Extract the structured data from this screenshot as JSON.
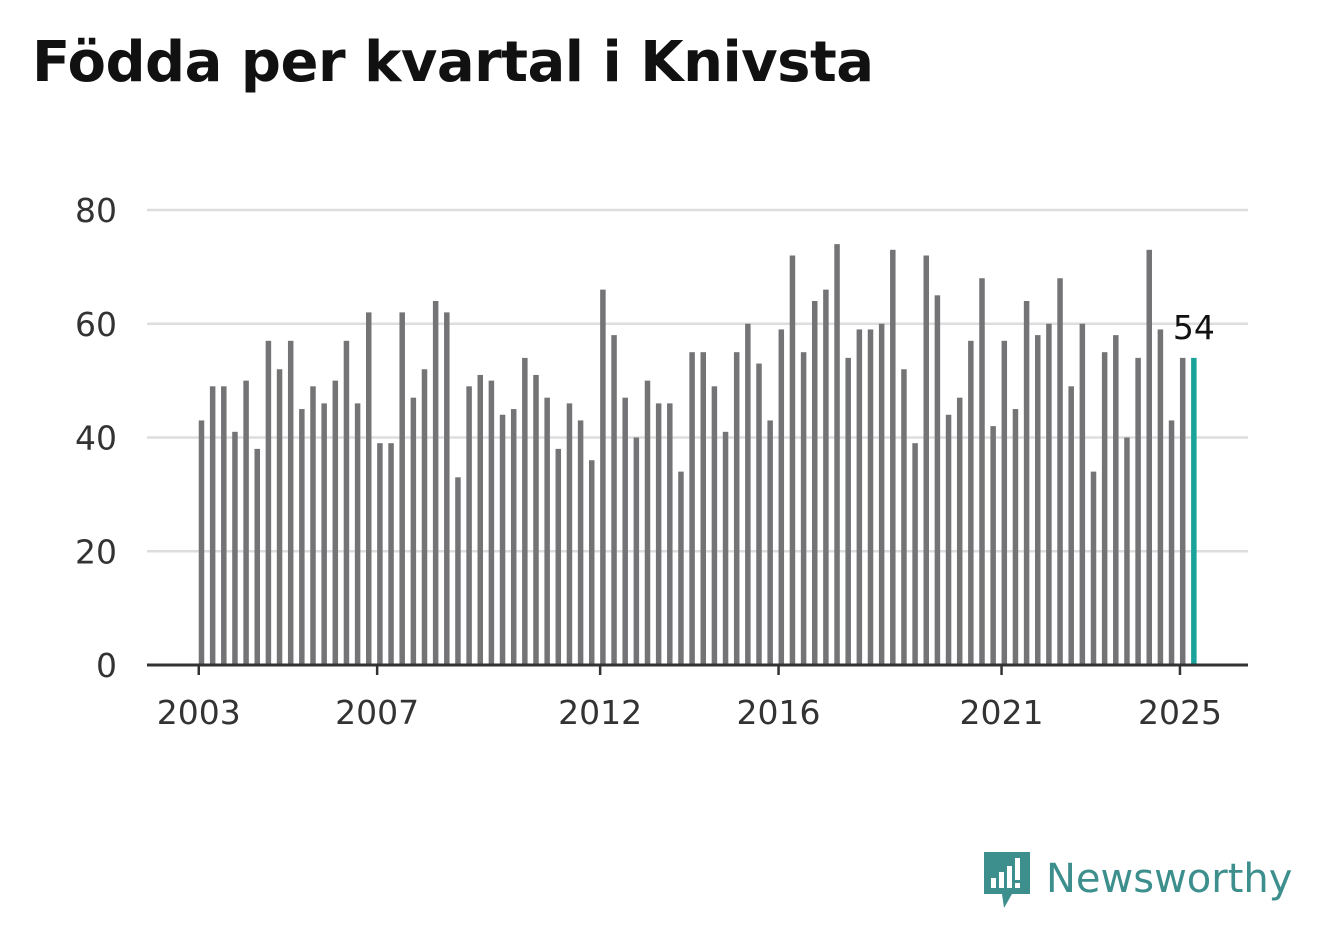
{
  "chart_data": {
    "type": "bar",
    "title": "Födda per kvartal i Knivsta",
    "xlabel": "",
    "ylabel": "",
    "ylim": [
      0,
      80
    ],
    "yticks": [
      0,
      20,
      40,
      60,
      80
    ],
    "x_tick_labels": [
      "2003",
      "2007",
      "2012",
      "2016",
      "2021",
      "2025"
    ],
    "grid": true,
    "start": "2003 Q1",
    "frequency": "quarter",
    "values": [
      43,
      49,
      49,
      41,
      50,
      38,
      57,
      52,
      57,
      45,
      49,
      46,
      50,
      57,
      46,
      62,
      39,
      39,
      62,
      47,
      52,
      64,
      62,
      33,
      49,
      51,
      50,
      44,
      45,
      54,
      51,
      47,
      38,
      46,
      43,
      36,
      66,
      58,
      47,
      40,
      50,
      46,
      46,
      34,
      55,
      55,
      49,
      41,
      55,
      60,
      53,
      43,
      59,
      72,
      55,
      64,
      66,
      74,
      54,
      59,
      59,
      60,
      73,
      52,
      39,
      72,
      65,
      44,
      47,
      57,
      68,
      42,
      57,
      45,
      64,
      58,
      60,
      68,
      49,
      60,
      34,
      55,
      58,
      40,
      54,
      73,
      59,
      43,
      54,
      54
    ],
    "highlight_last": true,
    "last_value_label": "54",
    "colors": {
      "bar": "#747477",
      "highlight": "#1aa39a",
      "grid": "#dddddd",
      "axis": "#333333"
    }
  },
  "brand": {
    "name": "Newsworthy",
    "color": "#3d8f8d"
  }
}
